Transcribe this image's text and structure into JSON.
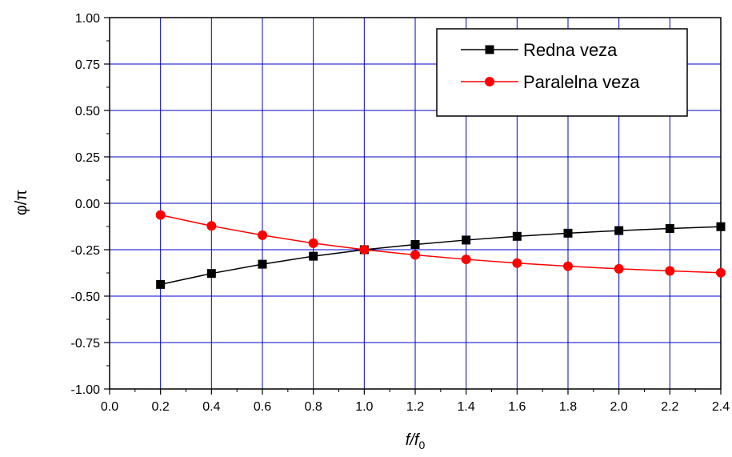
{
  "chart_data": {
    "type": "line",
    "title": "",
    "xlabel": "f/f0",
    "ylabel": "φ/π",
    "xlim": [
      0.0,
      2.4
    ],
    "ylim": [
      -1.0,
      1.0
    ],
    "x_ticks": [
      0.0,
      0.2,
      0.4,
      0.6,
      0.8,
      1.0,
      1.2,
      1.4,
      1.6,
      1.8,
      2.0,
      2.2,
      2.4
    ],
    "x_tick_labels": [
      "0.0",
      "0.2",
      "0.4",
      "0.6",
      "0.8",
      "1.0",
      "1.2",
      "1.4",
      "1.6",
      "1.8",
      "2.0",
      "2.2",
      "2.4"
    ],
    "y_ticks": [
      -1.0,
      -0.75,
      -0.5,
      -0.25,
      0.0,
      0.25,
      0.5,
      0.75,
      1.0
    ],
    "y_tick_labels": [
      "-1.00",
      "-0.75",
      "-0.50",
      "-0.25",
      "0.00",
      "0.25",
      "0.50",
      "0.75",
      "1.00"
    ],
    "grid": true,
    "grid_color": "#0000cc",
    "legend_position": "top-right",
    "series": [
      {
        "name": "Redna veza",
        "color": "#000000",
        "marker": "square",
        "x": [
          0.2,
          0.4,
          0.6,
          0.8,
          1.0,
          1.2,
          1.4,
          1.6,
          1.8,
          2.0,
          2.2,
          2.4
        ],
        "y": [
          -0.437,
          -0.378,
          -0.328,
          -0.285,
          -0.25,
          -0.222,
          -0.198,
          -0.178,
          -0.161,
          -0.147,
          -0.136,
          -0.126
        ]
      },
      {
        "name": "Paralelna veza",
        "color": "#ff0000",
        "marker": "circle",
        "x": [
          0.2,
          0.4,
          0.6,
          0.8,
          1.0,
          1.2,
          1.4,
          1.6,
          1.8,
          2.0,
          2.2,
          2.4
        ],
        "y": [
          -0.063,
          -0.122,
          -0.172,
          -0.215,
          -0.25,
          -0.278,
          -0.302,
          -0.322,
          -0.339,
          -0.353,
          -0.364,
          -0.374
        ]
      }
    ]
  }
}
